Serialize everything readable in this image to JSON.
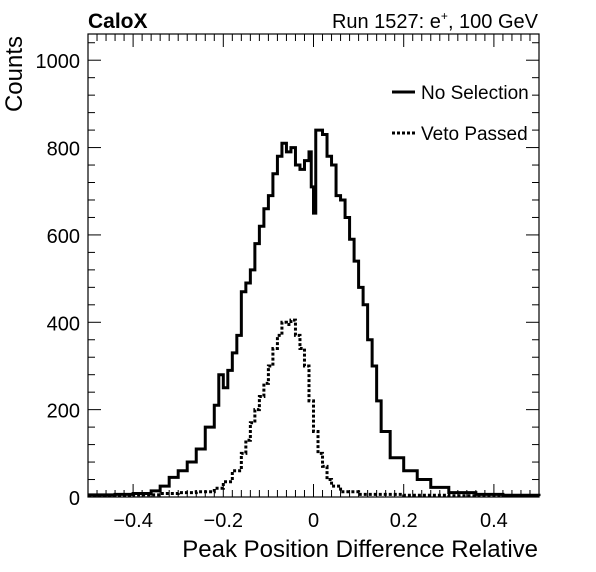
{
  "header": {
    "left_label": "CaloX",
    "right_label_prefix": "Run 1527: e",
    "right_label_sup": "+",
    "right_label_suffix": ", 100 GeV"
  },
  "chart_data": {
    "type": "histogram",
    "xlabel": "Peak Position Difference Relative",
    "ylabel": "Counts",
    "xlim": [
      -0.5,
      0.5
    ],
    "ylim": [
      0,
      1060
    ],
    "xticks": [
      -0.4,
      -0.2,
      0,
      0.2,
      0.4
    ],
    "xtick_labels": [
      "−0.4",
      "−0.2",
      "0",
      "0.2",
      "0.4"
    ],
    "yticks": [
      0,
      200,
      400,
      600,
      800,
      1000
    ],
    "ytick_labels": [
      "0",
      "200",
      "400",
      "600",
      "800",
      "1000"
    ],
    "legend_position": "top-right",
    "grid": false,
    "series": [
      {
        "name": "No Selection",
        "style": "solid",
        "color": "#000000",
        "points": [
          [
            -0.5,
            5
          ],
          [
            -0.44,
            6
          ],
          [
            -0.4,
            8
          ],
          [
            -0.36,
            14
          ],
          [
            -0.34,
            25
          ],
          [
            -0.32,
            45
          ],
          [
            -0.3,
            60
          ],
          [
            -0.28,
            80
          ],
          [
            -0.26,
            110
          ],
          [
            -0.24,
            160
          ],
          [
            -0.22,
            210
          ],
          [
            -0.21,
            280
          ],
          [
            -0.2,
            250
          ],
          [
            -0.19,
            290
          ],
          [
            -0.18,
            330
          ],
          [
            -0.17,
            370
          ],
          [
            -0.16,
            470
          ],
          [
            -0.15,
            490
          ],
          [
            -0.14,
            520
          ],
          [
            -0.13,
            580
          ],
          [
            -0.12,
            620
          ],
          [
            -0.11,
            660
          ],
          [
            -0.1,
            690
          ],
          [
            -0.09,
            740
          ],
          [
            -0.08,
            780
          ],
          [
            -0.07,
            810
          ],
          [
            -0.06,
            790
          ],
          [
            -0.05,
            800
          ],
          [
            -0.04,
            760
          ],
          [
            -0.03,
            750
          ],
          [
            -0.02,
            770
          ],
          [
            -0.01,
            790
          ],
          [
            -0.005,
            710
          ],
          [
            0,
            650
          ],
          [
            0.005,
            840
          ],
          [
            0.02,
            830
          ],
          [
            0.03,
            780
          ],
          [
            0.04,
            760
          ],
          [
            0.05,
            690
          ],
          [
            0.06,
            680
          ],
          [
            0.07,
            640
          ],
          [
            0.08,
            590
          ],
          [
            0.09,
            540
          ],
          [
            0.1,
            480
          ],
          [
            0.11,
            440
          ],
          [
            0.12,
            360
          ],
          [
            0.13,
            300
          ],
          [
            0.14,
            220
          ],
          [
            0.15,
            150
          ],
          [
            0.17,
            90
          ],
          [
            0.2,
            60
          ],
          [
            0.23,
            40
          ],
          [
            0.26,
            22
          ],
          [
            0.3,
            10
          ],
          [
            0.36,
            6
          ],
          [
            0.42,
            4
          ],
          [
            0.5,
            3
          ]
        ]
      },
      {
        "name": "Veto Passed",
        "style": "dotted",
        "color": "#000000",
        "points": [
          [
            -0.5,
            3
          ],
          [
            -0.4,
            5
          ],
          [
            -0.34,
            8
          ],
          [
            -0.3,
            10
          ],
          [
            -0.26,
            12
          ],
          [
            -0.22,
            20
          ],
          [
            -0.2,
            35
          ],
          [
            -0.18,
            60
          ],
          [
            -0.16,
            100
          ],
          [
            -0.15,
            130
          ],
          [
            -0.14,
            170
          ],
          [
            -0.13,
            200
          ],
          [
            -0.12,
            230
          ],
          [
            -0.11,
            260
          ],
          [
            -0.1,
            300
          ],
          [
            -0.09,
            340
          ],
          [
            -0.08,
            370
          ],
          [
            -0.07,
            400
          ],
          [
            -0.06,
            395
          ],
          [
            -0.05,
            405
          ],
          [
            -0.04,
            370
          ],
          [
            -0.03,
            340
          ],
          [
            -0.02,
            300
          ],
          [
            -0.01,
            220
          ],
          [
            0,
            150
          ],
          [
            0.01,
            100
          ],
          [
            0.02,
            70
          ],
          [
            0.03,
            40
          ],
          [
            0.04,
            25
          ],
          [
            0.06,
            12
          ],
          [
            0.1,
            6
          ],
          [
            0.2,
            4
          ],
          [
            0.3,
            3
          ],
          [
            0.5,
            2
          ]
        ]
      }
    ]
  }
}
